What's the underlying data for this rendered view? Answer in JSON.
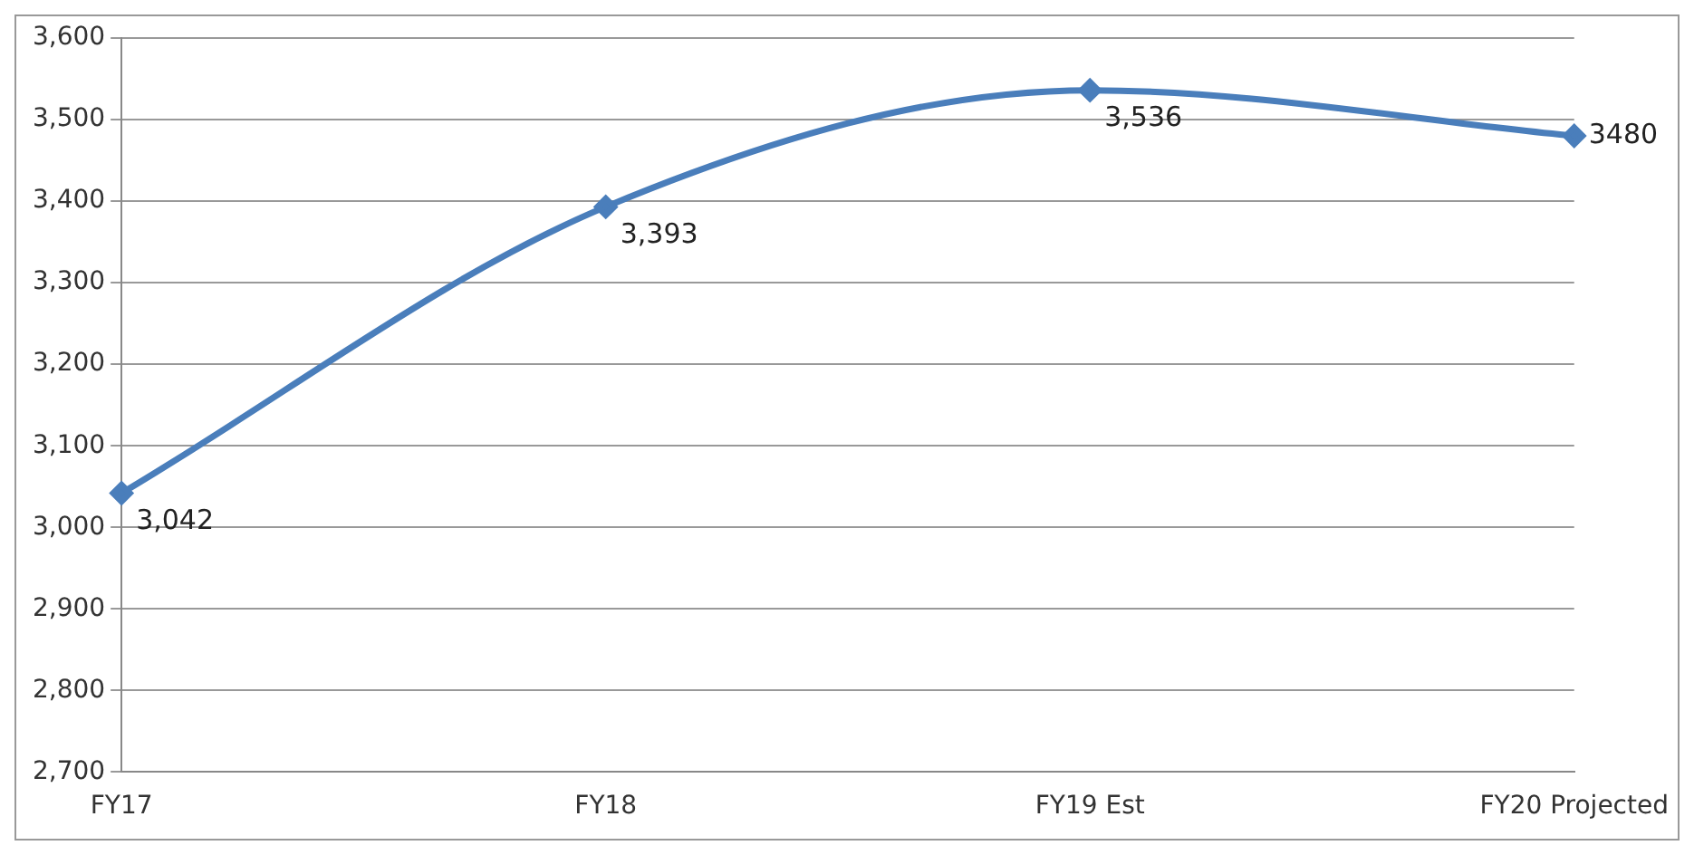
{
  "chart_data": {
    "type": "line",
    "categories": [
      "FY17",
      "FY18",
      "FY19 Est",
      "FY20 Projected"
    ],
    "series": [
      {
        "color": "#4a7ebb",
        "values": [
          3042,
          3393,
          3536,
          3480
        ],
        "value_labels": [
          "3,042",
          "3,393",
          "3,536",
          "3480"
        ]
      }
    ],
    "ylim": [
      2700,
      3600
    ],
    "yticks": [
      {
        "value": 2700,
        "label": "2,700"
      },
      {
        "value": 2800,
        "label": "2,800"
      },
      {
        "value": 2900,
        "label": "2,900"
      },
      {
        "value": 3000,
        "label": "3,000"
      },
      {
        "value": 3100,
        "label": "3,100"
      },
      {
        "value": 3200,
        "label": "3,200"
      },
      {
        "value": 3300,
        "label": "3,300"
      },
      {
        "value": 3400,
        "label": "3,400"
      },
      {
        "value": 3500,
        "label": "3,500"
      },
      {
        "value": 3600,
        "label": "3,600"
      }
    ],
    "grid": "y",
    "legend": false,
    "marker": "diamond",
    "line_style": "solid"
  }
}
